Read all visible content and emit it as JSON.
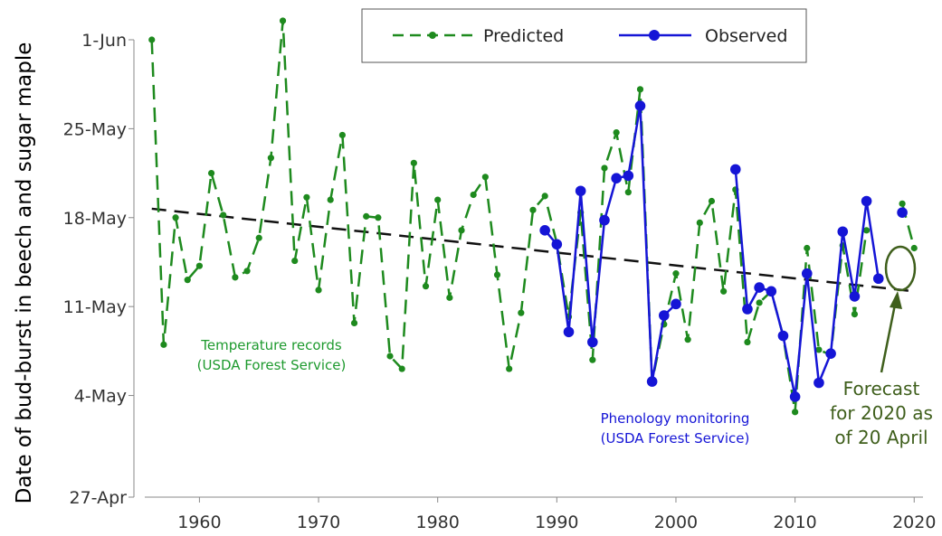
{
  "chart_data": {
    "type": "line",
    "ylabel": "Date of bud-burst in beech and sugar maple",
    "xlim": [
      1954.5,
      2021.5
    ],
    "ylim_day_of_may": [
      -4,
      32
    ],
    "x_ticks": [
      1960,
      1970,
      1980,
      1990,
      2000,
      2010,
      2020
    ],
    "y_ticks": [
      {
        "label": "27-Apr",
        "day": -4
      },
      {
        "label": "4-May",
        "day": 4
      },
      {
        "label": "11-May",
        "day": 11
      },
      {
        "label": "18-May",
        "day": 18
      },
      {
        "label": "25-May",
        "day": 25
      },
      {
        "label": "1-Jun",
        "day": 32
      }
    ],
    "legend": {
      "position": "top-right",
      "predicted": "Predicted",
      "observed": "Observed"
    },
    "colors": {
      "predicted": "#1e8a1e",
      "observed": "#1515d6",
      "trend": "#111111",
      "forecast": "#3f5f1c"
    },
    "series": [
      {
        "name": "Predicted",
        "segments": [
          [
            [
              1956,
              32.0
            ],
            [
              1957,
              8.0
            ],
            [
              1958,
              18.0
            ],
            [
              1959,
              13.1
            ],
            [
              1960,
              14.2
            ],
            [
              1961,
              21.5
            ],
            [
              1962,
              18.2
            ],
            [
              1963,
              13.3
            ],
            [
              1964,
              13.8
            ],
            [
              1965,
              16.4
            ],
            [
              1966,
              22.7
            ],
            [
              1967,
              33.5
            ],
            [
              1968,
              14.6
            ],
            [
              1969,
              19.6
            ],
            [
              1970,
              12.3
            ],
            [
              1971,
              19.4
            ],
            [
              1972,
              24.5
            ],
            [
              1973,
              9.7
            ],
            [
              1974,
              18.1
            ],
            [
              1975,
              18.0
            ],
            [
              1976,
              7.1
            ],
            [
              1977,
              6.1
            ],
            [
              1978,
              22.3
            ],
            [
              1979,
              12.6
            ],
            [
              1980,
              19.4
            ],
            [
              1981,
              11.7
            ],
            [
              1982,
              17.0
            ],
            [
              1983,
              19.8
            ],
            [
              1984,
              21.2
            ],
            [
              1985,
              13.5
            ],
            [
              1986,
              6.1
            ],
            [
              1987,
              10.5
            ],
            [
              1988,
              18.6
            ],
            [
              1989,
              19.7
            ],
            [
              1990,
              16.0
            ],
            [
              1991,
              10.2
            ],
            [
              1992,
              18.4
            ],
            [
              1993,
              6.8
            ],
            [
              1994,
              21.9
            ],
            [
              1995,
              24.7
            ],
            [
              1996,
              20.0
            ],
            [
              1997,
              28.1
            ],
            [
              1998,
              5.1
            ],
            [
              1999,
              9.6
            ],
            [
              2000,
              13.6
            ],
            [
              2001,
              8.4
            ],
            [
              2002,
              17.6
            ],
            [
              2003,
              19.3
            ],
            [
              2004,
              12.2
            ],
            [
              2005,
              20.2
            ],
            [
              2006,
              8.2
            ],
            [
              2007,
              11.3
            ],
            [
              2008,
              12.2
            ],
            [
              2009,
              8.7
            ],
            [
              2010,
              2.7
            ],
            [
              2011,
              15.6
            ],
            [
              2012,
              7.6
            ],
            [
              2013,
              7.2
            ],
            [
              2014,
              15.8
            ],
            [
              2015,
              10.4
            ],
            [
              2016,
              17.0
            ]
          ],
          [
            [
              2019,
              19.1
            ],
            [
              2020,
              15.6
            ]
          ]
        ]
      },
      {
        "name": "Observed",
        "segments": [
          [
            [
              1989,
              17.0
            ],
            [
              1990,
              15.9
            ],
            [
              1991,
              9.0
            ],
            [
              1992,
              20.1
            ],
            [
              1993,
              8.2
            ],
            [
              1994,
              17.8
            ],
            [
              1995,
              21.1
            ],
            [
              1996,
              21.3
            ],
            [
              1997,
              26.8
            ],
            [
              1998,
              5.1
            ],
            [
              1999,
              10.3
            ],
            [
              2000,
              11.2
            ],
            [
              2001,
              null
            ],
            [
              2002,
              null
            ],
            [
              2003,
              null
            ],
            [
              2004,
              null
            ],
            [
              2005,
              21.8
            ],
            [
              2006,
              10.8
            ],
            [
              2007,
              12.5
            ],
            [
              2008,
              12.2
            ],
            [
              2009,
              8.7
            ],
            [
              2010,
              3.9
            ],
            [
              2011,
              13.6
            ],
            [
              2012,
              5.0
            ],
            [
              2013,
              7.3
            ],
            [
              2014,
              16.9
            ],
            [
              2015,
              11.8
            ],
            [
              2016,
              19.3
            ],
            [
              2017,
              13.2
            ]
          ],
          [
            [
              2019,
              18.4
            ]
          ]
        ]
      }
    ],
    "trend": {
      "x": [
        1956,
        2020
      ],
      "y": [
        18.7,
        12.2
      ]
    },
    "annotations": {
      "temperature": [
        "Temperature records",
        "(USDA Forest Service)"
      ],
      "phenology": [
        "Phenology monitoring",
        "(USDA Forest Service)"
      ],
      "forecast": [
        "Forecast",
        "for 2020 as",
        "of 20 April"
      ]
    }
  }
}
